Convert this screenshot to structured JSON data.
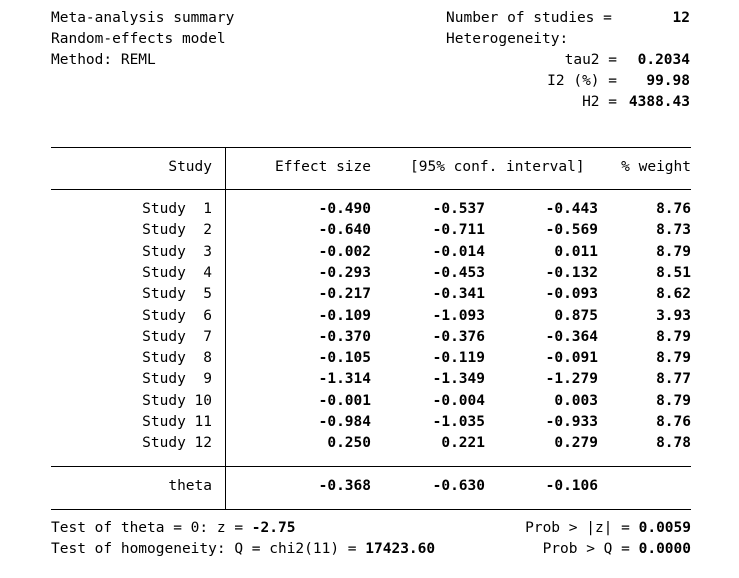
{
  "summary": {
    "title": "Meta-analysis summary",
    "model": "Random-effects model",
    "method": "Method: REML",
    "num_studies_label": "Number of studies =",
    "num_studies_value": "12",
    "heterogeneity_label": "Heterogeneity:",
    "tau2_label": "tau2 =",
    "tau2_value": "0.2034",
    "i2_label": "I2 (%) =",
    "i2_value": "99.98",
    "h2_label": "H2 =",
    "h2_value": "4388.43"
  },
  "table": {
    "headers": {
      "study": "Study",
      "effect": "Effect size",
      "ci": "[95% conf. interval]",
      "weight": "% weight"
    },
    "rows": [
      {
        "study": "Study  1",
        "effect": "-0.490",
        "lower": "-0.537",
        "upper": "-0.443",
        "weight": "8.76"
      },
      {
        "study": "Study  2",
        "effect": "-0.640",
        "lower": "-0.711",
        "upper": "-0.569",
        "weight": "8.73"
      },
      {
        "study": "Study  3",
        "effect": "-0.002",
        "lower": "-0.014",
        "upper": "0.011",
        "weight": "8.79"
      },
      {
        "study": "Study  4",
        "effect": "-0.293",
        "lower": "-0.453",
        "upper": "-0.132",
        "weight": "8.51"
      },
      {
        "study": "Study  5",
        "effect": "-0.217",
        "lower": "-0.341",
        "upper": "-0.093",
        "weight": "8.62"
      },
      {
        "study": "Study  6",
        "effect": "-0.109",
        "lower": "-1.093",
        "upper": "0.875",
        "weight": "3.93"
      },
      {
        "study": "Study  7",
        "effect": "-0.370",
        "lower": "-0.376",
        "upper": "-0.364",
        "weight": "8.79"
      },
      {
        "study": "Study  8",
        "effect": "-0.105",
        "lower": "-0.119",
        "upper": "-0.091",
        "weight": "8.79"
      },
      {
        "study": "Study  9",
        "effect": "-1.314",
        "lower": "-1.349",
        "upper": "-1.279",
        "weight": "8.77"
      },
      {
        "study": "Study 10",
        "effect": "-0.001",
        "lower": "-0.004",
        "upper": "0.003",
        "weight": "8.79"
      },
      {
        "study": "Study 11",
        "effect": "-0.984",
        "lower": "-1.035",
        "upper": "-0.933",
        "weight": "8.76"
      },
      {
        "study": "Study 12",
        "effect": "0.250",
        "lower": "0.221",
        "upper": "0.279",
        "weight": "8.78"
      }
    ],
    "theta": {
      "label": "theta",
      "effect": "-0.368",
      "lower": "-0.630",
      "upper": "-0.106"
    }
  },
  "tests": {
    "theta_label": "Test of theta = 0: z = ",
    "theta_z": "-2.75",
    "theta_prob_label": "Prob > |z| = ",
    "theta_prob": "0.0059",
    "homog_label": "Test of homogeneity: Q = chi2(11) = ",
    "homog_q": "17423.60",
    "homog_prob_label": "Prob > Q = ",
    "homog_prob": "0.0000"
  }
}
